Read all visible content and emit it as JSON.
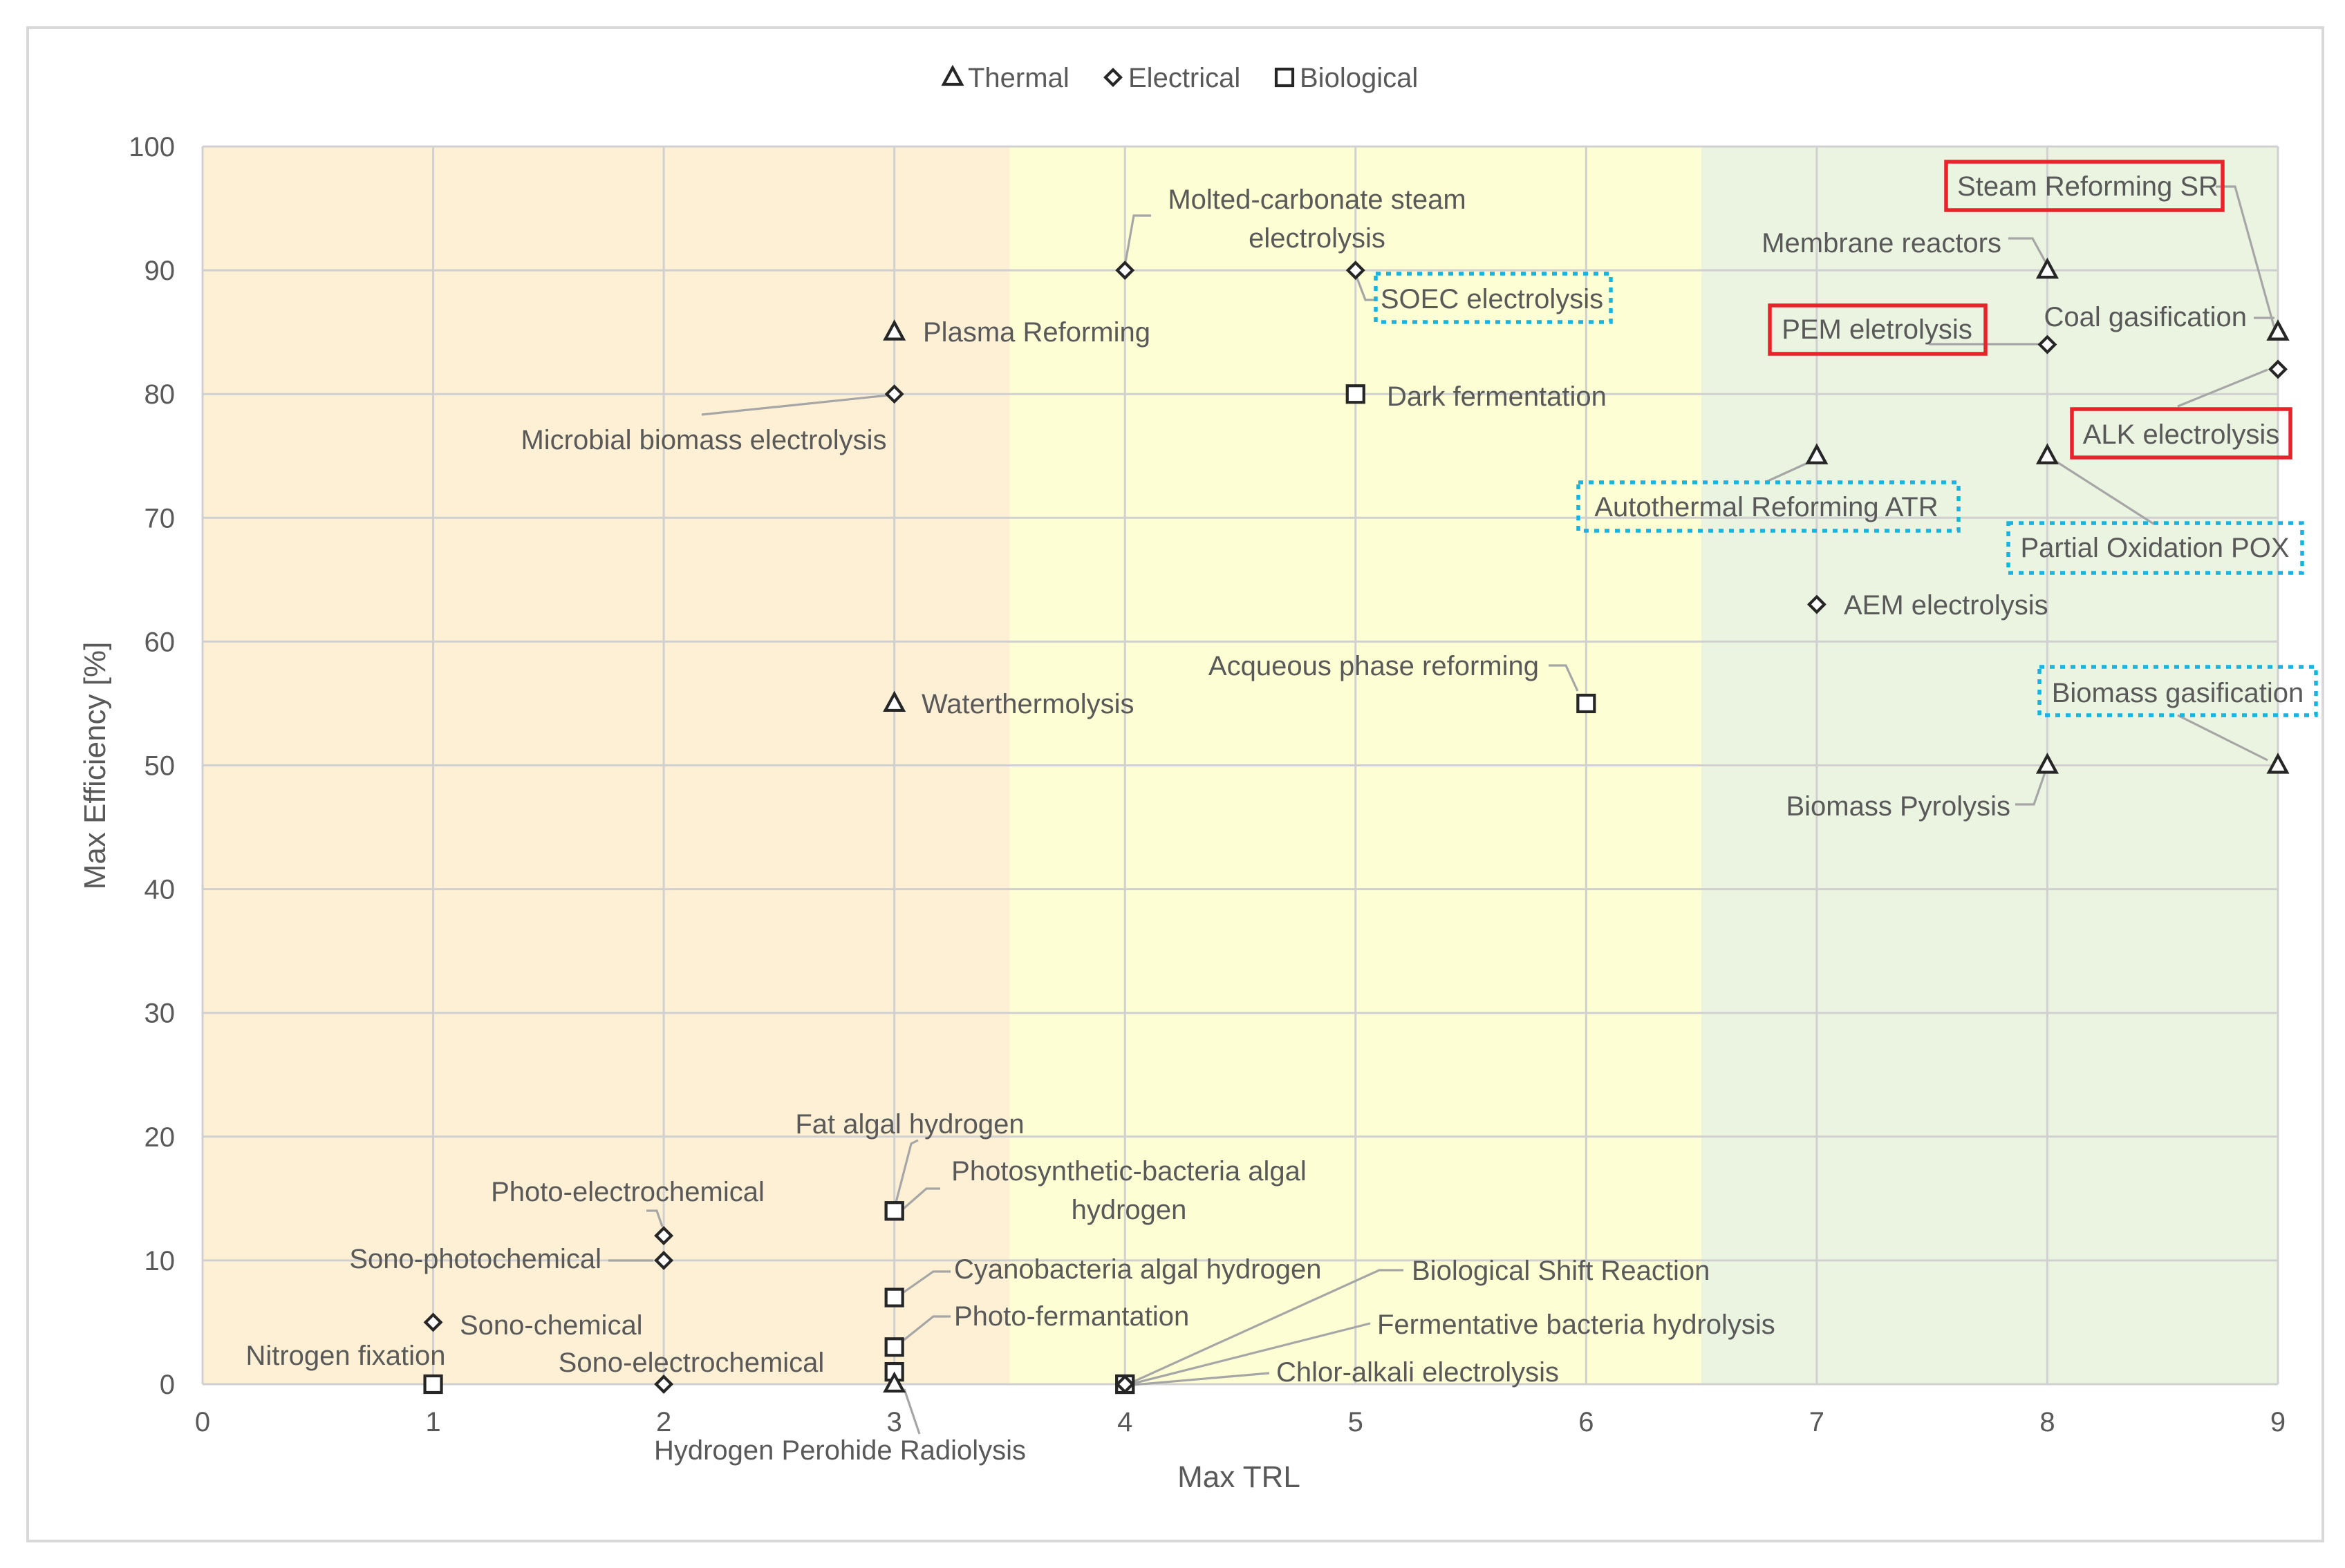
{
  "colors": {
    "zone_low": "#fdf0d5",
    "zone_mid": "#fefed5",
    "zone_high": "#eaf4e0",
    "marker_stroke": "#262626",
    "label_text": "#595959",
    "leader_line": "#a6a6a6",
    "highlight_red": "#e8242a",
    "highlight_blue": "#18b4df"
  },
  "chart_data": {
    "type": "scatter",
    "title": "",
    "xlabel": "Max TRL",
    "ylabel": "Max Efficiency [%]",
    "xlim": [
      0,
      9
    ],
    "ylim": [
      0,
      100
    ],
    "x_ticks": [
      "0",
      "1",
      "2",
      "3",
      "4",
      "5",
      "6",
      "7",
      "8",
      "9"
    ],
    "y_ticks": [
      "0",
      "10",
      "20",
      "30",
      "40",
      "50",
      "60",
      "70",
      "80",
      "90",
      "100"
    ],
    "grid": true,
    "legend_position": "top-center",
    "zones": [
      {
        "from": 0,
        "to": 3.5,
        "color": "#fdf0d5"
      },
      {
        "from": 3.5,
        "to": 6.5,
        "color": "#fefed5"
      },
      {
        "from": 6.5,
        "to": 9,
        "color": "#eaf4e0"
      }
    ],
    "legend": [
      {
        "label": "Thermal",
        "marker": "triangle"
      },
      {
        "label": "Electrical",
        "marker": "diamond"
      },
      {
        "label": "Biological",
        "marker": "square"
      }
    ],
    "points": [
      {
        "label": "Steam Reforming SR",
        "x": 9,
        "y": 85,
        "category": "Thermal",
        "highlight": "red"
      },
      {
        "label": "Membrane reactors",
        "x": 8,
        "y": 90,
        "category": "Thermal"
      },
      {
        "label": "Coal gasification",
        "x": 9,
        "y": 85,
        "category": "Thermal"
      },
      {
        "label": "PEM eletrolysis",
        "x": 8,
        "y": 84,
        "category": "Electrical",
        "highlight": "red"
      },
      {
        "label": "ALK electrolysis",
        "x": 9,
        "y": 82,
        "category": "Electrical",
        "highlight": "red"
      },
      {
        "label": "Molted-carbonate steam electrolysis",
        "x": 4,
        "y": 90,
        "category": "Electrical"
      },
      {
        "label": "SOEC electrolysis",
        "x": 5,
        "y": 90,
        "category": "Electrical",
        "highlight": "blue"
      },
      {
        "label": "Plasma Reforming",
        "x": 3,
        "y": 85,
        "category": "Thermal"
      },
      {
        "label": "Microbial biomass electrolysis",
        "x": 3,
        "y": 80,
        "category": "Electrical"
      },
      {
        "label": "Dark fermentation",
        "x": 5,
        "y": 80,
        "category": "Biological"
      },
      {
        "label": "Autothermal Reforming ATR",
        "x": 7,
        "y": 75,
        "category": "Thermal",
        "highlight": "blue"
      },
      {
        "label": "Partial Oxidation POX",
        "x": 8,
        "y": 75,
        "category": "Thermal",
        "highlight": "blue"
      },
      {
        "label": "AEM electrolysis",
        "x": 7,
        "y": 63,
        "category": "Electrical"
      },
      {
        "label": "Acqueous phase reforming",
        "x": 6,
        "y": 55,
        "category": "Biological"
      },
      {
        "label": "Waterthermolysis",
        "x": 3,
        "y": 55,
        "category": "Thermal"
      },
      {
        "label": "Biomass gasification",
        "x": 9,
        "y": 50,
        "category": "Thermal",
        "highlight": "blue"
      },
      {
        "label": "Biomass Pyrolysis",
        "x": 8,
        "y": 50,
        "category": "Thermal"
      },
      {
        "label": "Fat algal hydrogen",
        "x": 3,
        "y": 14,
        "category": "Biological"
      },
      {
        "label": "Photosynthetic-bacteria algal hydrogen",
        "x": 3,
        "y": 14,
        "category": "Biological"
      },
      {
        "label": "Photo-electrochemical",
        "x": 2,
        "y": 12,
        "category": "Electrical"
      },
      {
        "label": "Sono-photochemical",
        "x": 2,
        "y": 10,
        "category": "Electrical"
      },
      {
        "label": "Cyanobacteria algal hydrogen",
        "x": 3,
        "y": 7,
        "category": "Biological"
      },
      {
        "label": "Sono-chemical",
        "x": 1,
        "y": 5,
        "category": "Electrical"
      },
      {
        "label": "Photo-fermantation",
        "x": 3,
        "y": 3,
        "category": "Biological"
      },
      {
        "label": "Nitrogen fixation",
        "x": 1,
        "y": 0,
        "category": "Biological"
      },
      {
        "label": "Sono-electrochemical",
        "x": 2,
        "y": 0,
        "category": "Electrical"
      },
      {
        "label": "Hydrogen Perohide Radiolysis",
        "x": 3,
        "y": 0,
        "category": "Thermal"
      },
      {
        "label": "Biological Shift Reaction",
        "x": 4,
        "y": 0,
        "category": "Biological"
      },
      {
        "label": "Fermentative bacteria hydrolysis",
        "x": 4,
        "y": 0,
        "category": "Biological"
      },
      {
        "label": "Chlor-alkali electrolysis",
        "x": 4,
        "y": 0,
        "category": "Electrical"
      }
    ]
  }
}
